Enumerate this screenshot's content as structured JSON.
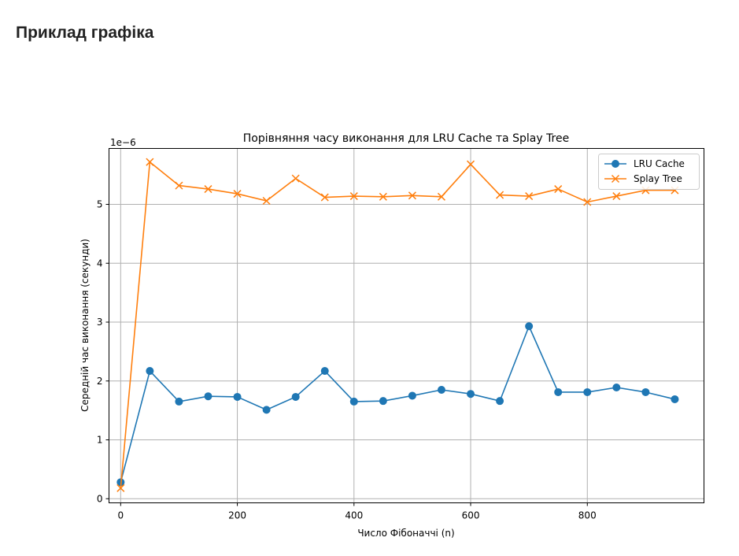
{
  "page": {
    "heading": "Приклад графіка"
  },
  "chart_data": {
    "type": "line",
    "title": "Порівняння часу виконання для LRU Cache та Splay Tree",
    "xlabel": "Число Фібоначчі (n)",
    "ylabel": "Середній час виконання (секунди)",
    "y_offset_label": "1e−6",
    "xlim": [
      -20,
      1000
    ],
    "ylim": [
      -0.07,
      5.95
    ],
    "x_ticks": [
      0,
      200,
      400,
      600,
      800
    ],
    "x_tick_labels": [
      "0",
      "200",
      "400",
      "600",
      "800"
    ],
    "y_ticks": [
      0,
      1,
      2,
      3,
      4,
      5
    ],
    "y_tick_labels": [
      "0",
      "1",
      "2",
      "3",
      "4",
      "5"
    ],
    "grid": true,
    "legend_position": "top-right",
    "x": [
      0,
      50,
      100,
      150,
      200,
      250,
      300,
      350,
      400,
      450,
      500,
      550,
      600,
      650,
      700,
      750,
      800,
      850,
      900,
      950
    ],
    "series": [
      {
        "name": "LRU Cache",
        "color": "#1f77b4",
        "marker": "circle",
        "values": [
          0.28,
          2.17,
          1.65,
          1.74,
          1.73,
          1.51,
          1.73,
          2.17,
          1.65,
          1.66,
          1.75,
          1.85,
          1.78,
          1.66,
          2.93,
          1.81,
          1.81,
          1.89,
          1.81,
          1.69
        ]
      },
      {
        "name": "Splay Tree",
        "color": "#ff7f0e",
        "marker": "x",
        "values": [
          0.18,
          5.72,
          5.32,
          5.26,
          5.18,
          5.06,
          5.44,
          5.12,
          5.14,
          5.13,
          5.15,
          5.13,
          5.68,
          5.16,
          5.14,
          5.26,
          5.04,
          5.14,
          5.24,
          5.24
        ]
      }
    ]
  }
}
